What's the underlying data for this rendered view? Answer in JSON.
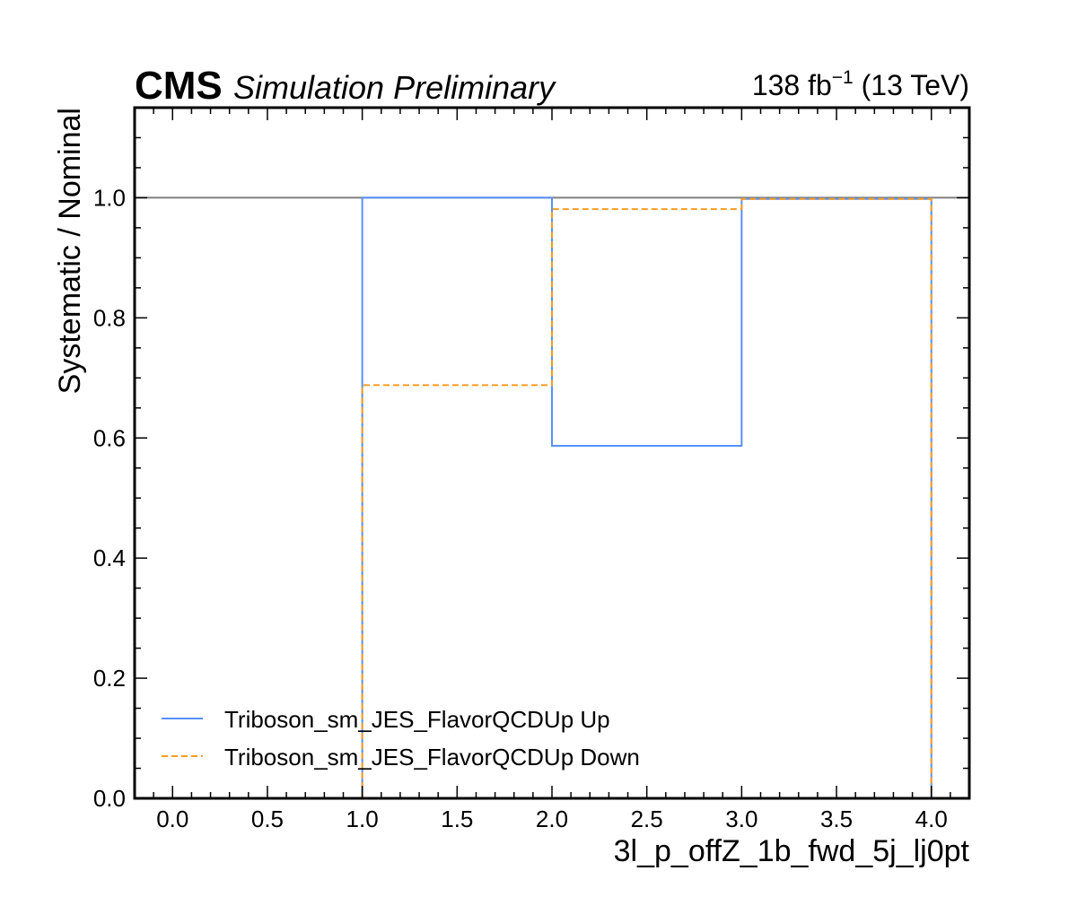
{
  "header": {
    "cms": "CMS",
    "extra": "Simulation Preliminary",
    "lumi_value": "138 fb",
    "lumi_exp": "−1",
    "lumi_energy": " (13 TeV)"
  },
  "chart_data": {
    "type": "line",
    "step": "histogram",
    "xlabel": "3l_p_offZ_1b_fwd_5j_lj0pt",
    "ylabel": "Systematic / Nominal",
    "xlim": [
      -0.2,
      4.2
    ],
    "ylim": [
      0,
      1.15
    ],
    "xticks": [
      0.0,
      0.5,
      1.0,
      1.5,
      2.0,
      2.5,
      3.0,
      3.5,
      4.0
    ],
    "xtick_labels": [
      "0.0",
      "0.5",
      "1.0",
      "1.5",
      "2.0",
      "2.5",
      "3.0",
      "3.5",
      "4.0"
    ],
    "yticks": [
      0.0,
      0.2,
      0.4,
      0.6,
      0.8,
      1.0
    ],
    "ytick_labels": [
      "0.0",
      "0.2",
      "0.4",
      "0.6",
      "0.8",
      "1.0"
    ],
    "reference_line": 1.0,
    "bin_edges": [
      1.0,
      2.0,
      3.0,
      4.0
    ],
    "series": [
      {
        "name": "Triboson_sm_JES_FlavorQCDUp Up",
        "values": [
          1.0,
          0.587,
          0.998
        ],
        "color": "#5790fc",
        "style": "solid"
      },
      {
        "name": "Triboson_sm_JES_FlavorQCDUp Down",
        "values": [
          0.688,
          0.981,
          0.998
        ],
        "color": "#f89c20",
        "style": "dashed"
      }
    ],
    "legend_position": "lower-left"
  }
}
